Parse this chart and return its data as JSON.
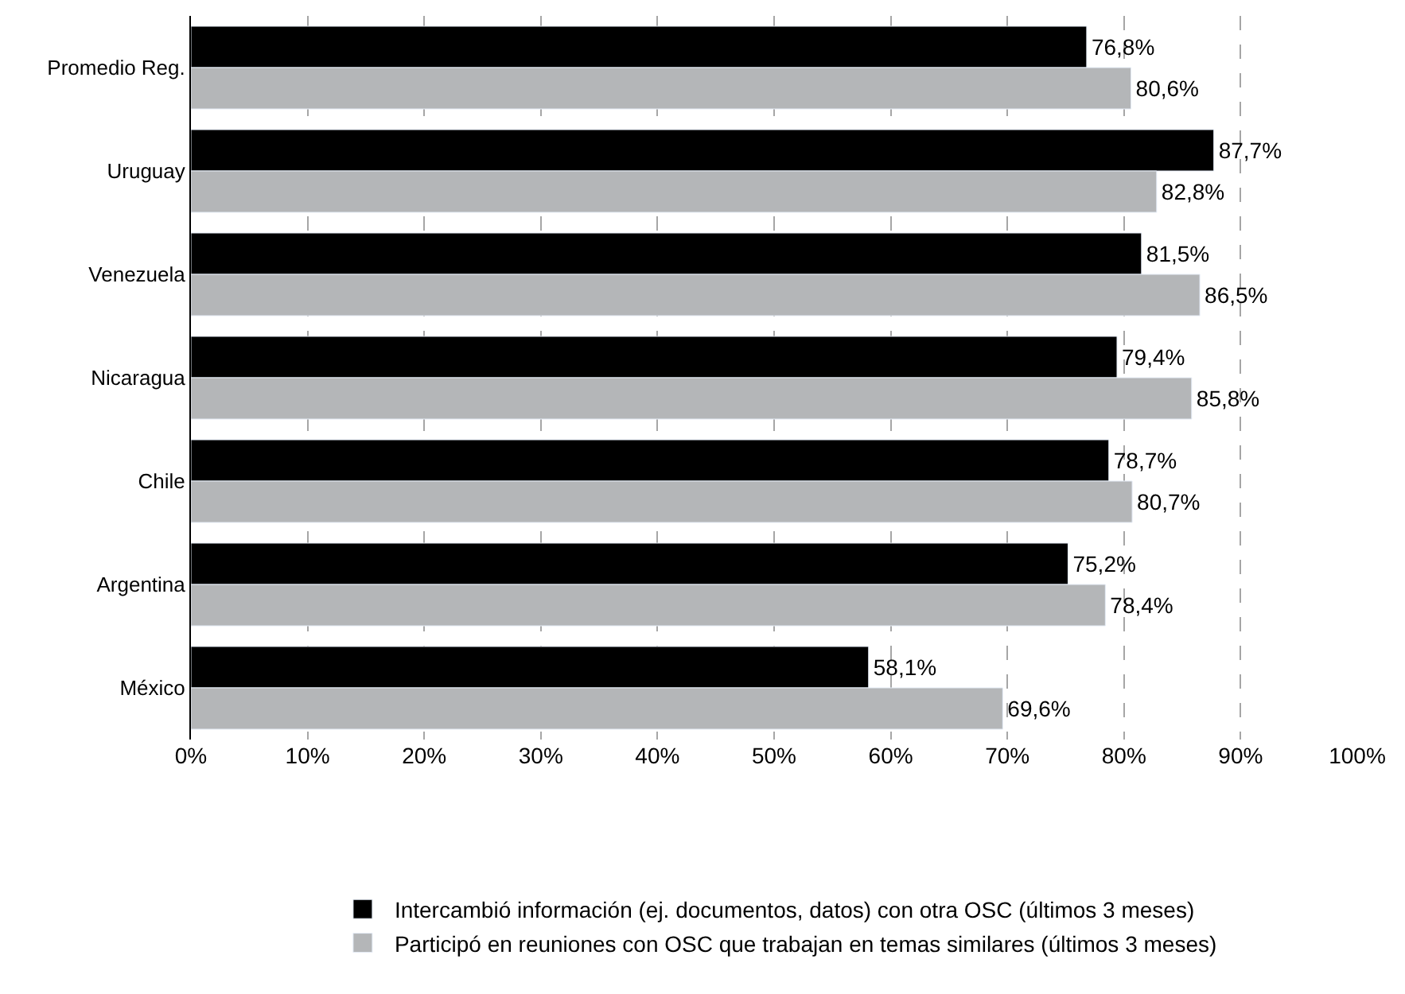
{
  "chart_data": {
    "type": "bar",
    "orientation": "horizontal",
    "categories": [
      "Promedio Reg.",
      "Uruguay",
      "Venezuela",
      "Nicaragua",
      "Chile",
      "Argentina",
      "México"
    ],
    "series": [
      {
        "name": "Intercambió información (ej. documentos, datos) con otra OSC (últimos 3 meses)",
        "color": "#000000",
        "values": [
          76.8,
          87.7,
          81.5,
          79.4,
          78.7,
          75.2,
          58.1
        ],
        "value_labels": [
          "76,8%",
          "87,7%",
          "81,5%",
          "79,4%",
          "78,7%",
          "75,2%",
          "58,1%"
        ]
      },
      {
        "name": "Participó en reuniones con OSC que trabajan en temas similares (últimos 3 meses)",
        "color": "#b4b6b8",
        "values": [
          80.6,
          82.8,
          86.5,
          85.8,
          80.7,
          78.4,
          69.6
        ],
        "value_labels": [
          "80,6%",
          "82,8%",
          "86,5%",
          "85,8%",
          "80,7%",
          "78,4%",
          "69,6%"
        ]
      }
    ],
    "xlim": [
      0,
      100
    ],
    "xticks": [
      {
        "value": 0,
        "label": "0%"
      },
      {
        "value": 10,
        "label": "10%"
      },
      {
        "value": 20,
        "label": "20%"
      },
      {
        "value": 30,
        "label": "30%"
      },
      {
        "value": 40,
        "label": "40%"
      },
      {
        "value": 50,
        "label": "50%"
      },
      {
        "value": 60,
        "label": "60%"
      },
      {
        "value": 70,
        "label": "70%"
      },
      {
        "value": 80,
        "label": "80%"
      },
      {
        "value": 90,
        "label": "90%"
      },
      {
        "value": 100,
        "label": "100%"
      }
    ],
    "grid": "x",
    "legend": "bottom"
  }
}
